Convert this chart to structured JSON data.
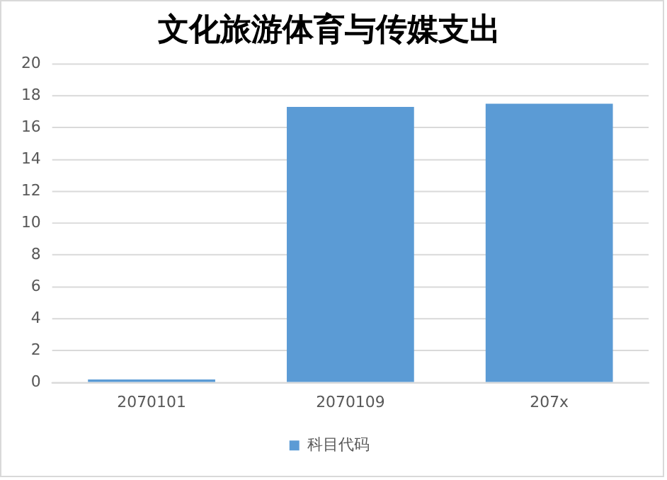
{
  "chart_data": {
    "type": "bar",
    "title": "文化旅游体育与传媒支出",
    "categories": [
      "2070101",
      "2070109",
      "207x"
    ],
    "series": [
      {
        "name": "科目代码",
        "color": "#5b9bd5",
        "values": [
          0.2,
          17.3,
          17.5
        ]
      }
    ],
    "ylim": [
      0,
      20
    ],
    "yticks": [
      0,
      2,
      4,
      6,
      8,
      10,
      12,
      14,
      16,
      18,
      20
    ],
    "grid": "y",
    "legend": "bottom"
  }
}
